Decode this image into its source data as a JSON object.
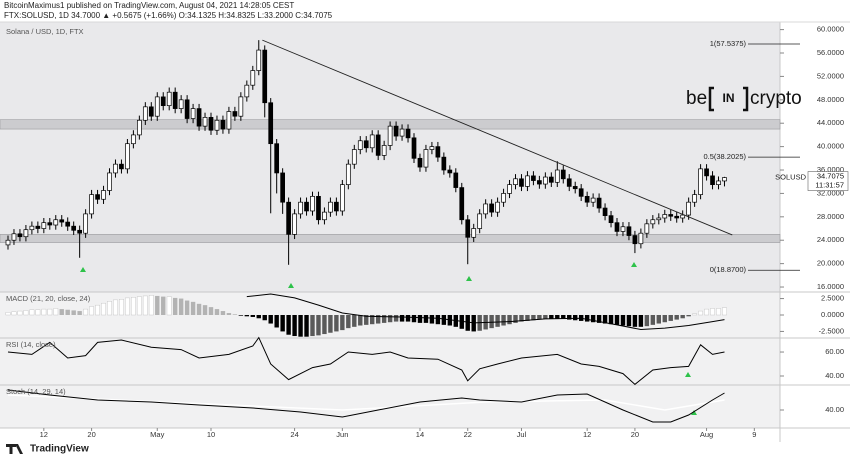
{
  "header": {
    "author_line": "BitcoinMaximus1 published on TradingView.com, August 04, 2021 14:28:05 CEST",
    "symbol_line": "FTX:SOLUSD, 1D 34.7000 ▲ +0.5675 (+1.66%) O:34.1325 H:34.8325 L:33.2000 C:34.7075"
  },
  "watermark": {
    "pre": "be",
    "mid": "IN",
    "post": "crypto"
  },
  "footer": {
    "logo": "TradingView"
  },
  "chart_data": {
    "type": "candlestick",
    "title": "Solana / USD, 1D, FTX",
    "symbol": "SOLUSD",
    "last_price": 34.7075,
    "countdown": "11:31:57",
    "open": [
      23.2,
      24.0,
      25.1,
      24.6,
      25.8,
      26.4,
      26.0,
      27.0,
      26.6,
      27.5,
      27.1,
      26.4,
      25.7,
      25.2,
      28.5,
      31.8,
      31.0,
      32.5,
      35.5,
      37.0,
      36.2,
      40.5,
      42.0,
      44.5,
      46.8,
      45.2,
      48.5,
      47.0,
      49.3,
      46.5,
      48.0,
      44.8,
      46.5,
      43.5,
      45.0,
      42.8,
      44.5,
      43.0,
      46.0,
      45.2,
      48.5,
      50.5,
      53.0,
      56.5,
      47.5,
      40.5,
      35.5,
      30.5,
      25.0,
      28.5,
      30.5,
      29.0,
      31.5,
      27.5,
      28.8,
      30.5,
      29.0,
      33.5,
      37.0,
      39.5,
      41.0,
      39.8,
      42.0,
      38.5,
      40.2,
      43.5,
      41.8,
      43.0,
      41.5,
      38.0,
      36.5,
      39.5,
      40.0,
      38.2,
      36.0,
      35.5,
      33.0,
      27.5,
      24.5,
      26.0,
      28.5,
      30.2,
      28.8,
      30.5,
      32.0,
      33.5,
      34.5,
      33.2,
      35.0,
      34.2,
      33.6,
      34.8,
      33.9,
      36.0,
      34.5,
      33.2,
      32.8,
      31.5,
      30.5,
      31.2,
      29.5,
      28.2,
      27.0,
      25.5,
      26.3,
      24.8,
      23.4,
      25.2,
      26.8,
      27.5,
      27.8,
      28.4,
      28.1,
      27.8,
      28.3,
      30.5,
      31.8,
      36.2,
      35.0,
      33.5,
      34.1325
    ],
    "high": [
      24.8,
      25.9,
      25.9,
      26.6,
      27.2,
      27.2,
      27.8,
      27.8,
      28.3,
      28.3,
      27.9,
      27.2,
      26.5,
      29.3,
      32.6,
      32.6,
      33.3,
      36.3,
      37.8,
      37.8,
      41.3,
      42.8,
      45.3,
      47.6,
      47.6,
      49.3,
      49.3,
      50.1,
      50.1,
      48.8,
      48.8,
      47.3,
      47.3,
      45.8,
      45.8,
      45.3,
      45.3,
      46.8,
      46.8,
      49.3,
      51.3,
      53.8,
      58.2,
      57.3,
      48.3,
      41.3,
      36.3,
      31.3,
      29.3,
      31.3,
      31.3,
      32.3,
      32.3,
      29.6,
      31.3,
      31.3,
      34.3,
      37.8,
      40.3,
      41.8,
      41.8,
      42.8,
      42.8,
      41.0,
      44.3,
      44.3,
      43.8,
      43.8,
      42.3,
      38.8,
      40.3,
      40.8,
      40.8,
      39.0,
      36.8,
      36.3,
      33.8,
      28.3,
      26.8,
      29.3,
      31.0,
      31.0,
      31.3,
      32.8,
      34.3,
      35.3,
      35.3,
      35.8,
      35.8,
      35.0,
      35.6,
      35.6,
      37.5,
      36.8,
      35.3,
      34.0,
      33.6,
      32.3,
      32.0,
      32.0,
      30.3,
      29.0,
      27.8,
      27.1,
      27.1,
      25.6,
      26.0,
      27.6,
      28.3,
      28.6,
      29.2,
      29.2,
      28.9,
      29.1,
      31.3,
      32.6,
      37.0,
      37.0,
      35.8,
      34.9,
      34.8325
    ],
    "low": [
      22.4,
      23.2,
      23.8,
      23.8,
      25.0,
      25.2,
      25.2,
      25.8,
      25.8,
      26.3,
      25.6,
      24.9,
      21.0,
      24.4,
      27.7,
      30.2,
      30.2,
      31.7,
      34.7,
      35.4,
      35.4,
      39.7,
      41.2,
      43.7,
      44.4,
      44.4,
      46.2,
      46.2,
      45.7,
      45.7,
      44.0,
      44.0,
      42.7,
      42.7,
      42.0,
      42.0,
      42.2,
      42.2,
      44.4,
      44.4,
      47.7,
      49.7,
      52.2,
      45.0,
      28.6,
      32.0,
      28.5,
      19.8,
      24.2,
      27.7,
      28.2,
      28.2,
      26.7,
      26.7,
      28.0,
      28.2,
      28.2,
      32.7,
      36.2,
      38.7,
      39.0,
      39.0,
      37.7,
      37.7,
      39.4,
      41.0,
      41.0,
      40.7,
      37.2,
      35.7,
      35.7,
      38.7,
      37.4,
      35.2,
      34.7,
      32.2,
      26.7,
      19.9,
      23.7,
      25.2,
      27.7,
      28.0,
      28.0,
      29.7,
      31.2,
      32.7,
      32.4,
      32.4,
      33.4,
      32.8,
      32.8,
      33.1,
      33.1,
      33.7,
      32.4,
      32.0,
      30.7,
      29.7,
      29.7,
      28.7,
      27.4,
      26.2,
      24.7,
      24.7,
      24.0,
      21.8,
      22.6,
      24.4,
      26.0,
      26.7,
      27.0,
      27.3,
      27.0,
      27.0,
      27.5,
      29.7,
      31.0,
      34.2,
      32.7,
      32.7,
      33.2
    ],
    "close": [
      24.0,
      25.1,
      24.6,
      25.8,
      26.4,
      26.0,
      27.0,
      26.6,
      27.5,
      27.1,
      26.4,
      25.7,
      25.2,
      28.5,
      31.8,
      31.0,
      32.5,
      35.5,
      37.0,
      36.2,
      40.5,
      42.0,
      44.5,
      46.8,
      45.2,
      48.5,
      47.0,
      49.3,
      46.5,
      48.0,
      44.8,
      46.5,
      43.5,
      45.0,
      42.8,
      44.5,
      43.0,
      46.0,
      45.2,
      48.5,
      50.5,
      53.0,
      56.5,
      47.5,
      40.5,
      35.5,
      30.5,
      25.0,
      28.5,
      30.5,
      29.0,
      31.5,
      27.5,
      28.8,
      30.5,
      29.0,
      33.5,
      37.0,
      39.5,
      41.0,
      39.8,
      42.0,
      38.5,
      40.2,
      43.5,
      41.8,
      43.0,
      41.5,
      38.0,
      36.5,
      39.5,
      40.0,
      38.2,
      36.0,
      35.5,
      33.0,
      27.5,
      24.5,
      26.0,
      28.5,
      30.2,
      28.8,
      30.5,
      32.0,
      33.5,
      34.5,
      33.2,
      35.0,
      34.2,
      33.6,
      34.8,
      33.9,
      36.0,
      34.5,
      33.2,
      32.8,
      31.5,
      30.5,
      31.2,
      29.5,
      28.2,
      27.0,
      25.5,
      26.3,
      24.8,
      23.4,
      25.2,
      26.8,
      27.5,
      27.8,
      28.4,
      28.1,
      27.8,
      28.3,
      30.5,
      31.8,
      36.2,
      35.0,
      33.5,
      34.13,
      34.7075
    ],
    "xlim": [
      -1.34,
      129.3
    ],
    "xticks": [
      {
        "value": 6,
        "label": "12"
      },
      {
        "value": 14,
        "label": "20"
      },
      {
        "value": 25,
        "label": "May"
      },
      {
        "value": 34,
        "label": "10"
      },
      {
        "value": 48,
        "label": "24"
      },
      {
        "value": 56,
        "label": "Jun"
      },
      {
        "value": 69,
        "label": "14"
      },
      {
        "value": 77,
        "label": "22"
      },
      {
        "value": 86,
        "label": "Jul"
      },
      {
        "value": 97,
        "label": "12"
      },
      {
        "value": 105,
        "label": "20"
      },
      {
        "value": 117,
        "label": "Aug"
      },
      {
        "value": 125,
        "label": "9"
      }
    ],
    "ylim": [
      15.15,
      61.3
    ],
    "yticks": [
      {
        "value": 16,
        "label": "16.0000"
      },
      {
        "value": 20,
        "label": "20.0000"
      },
      {
        "value": 24,
        "label": "24.0000"
      },
      {
        "value": 28,
        "label": "28.0000"
      },
      {
        "value": 32,
        "label": "32.0000"
      },
      {
        "value": 36,
        "label": "36.0000"
      },
      {
        "value": 40,
        "label": "40.0000"
      },
      {
        "value": 44,
        "label": "44.0000"
      },
      {
        "value": 48,
        "label": "48.0000"
      },
      {
        "value": 52,
        "label": "52.0000"
      },
      {
        "value": 56,
        "label": "56.0000"
      },
      {
        "value": 60,
        "label": "60.0000"
      }
    ],
    "zones": [
      [
        23.6,
        25.0
      ],
      [
        43.0,
        44.6
      ]
    ],
    "trendline": {
      "x": [
        42.6,
        121.3
      ],
      "values": [
        58.2,
        24.9
      ]
    },
    "fib_levels": [
      {
        "value": 57.5375,
        "label": "1(57.5375)"
      },
      {
        "value": 38.2025,
        "label": "0.5(38.2025)"
      },
      {
        "value": 18.87,
        "label": "0(18.8700)"
      }
    ],
    "indicators": [
      {
        "type": "macd",
        "title": "MACD (21, 20, close, 24)",
        "ylim": [
          -3.5,
          3.5
        ],
        "yticks": [
          {
            "value": 2.5,
            "label": "2.5000"
          },
          {
            "value": 0,
            "label": "0.0000"
          },
          {
            "value": -2.5,
            "label": "-2.5000"
          }
        ],
        "histogram": [
          0.4,
          0.5,
          0.6,
          0.7,
          0.8,
          0.8,
          0.9,
          0.9,
          1.0,
          0.9,
          0.8,
          0.7,
          0.6,
          0.9,
          1.3,
          1.5,
          1.8,
          2.1,
          2.3,
          2.4,
          2.6,
          2.7,
          2.8,
          2.9,
          3.0,
          2.9,
          2.8,
          2.8,
          2.6,
          2.5,
          2.2,
          2.0,
          1.7,
          1.5,
          1.2,
          0.9,
          0.6,
          0.3,
          0.1,
          -0.1,
          -0.2,
          -0.3,
          -0.5,
          -0.8,
          -1.3,
          -1.9,
          -2.5,
          -3.0,
          -3.2,
          -3.3,
          -3.3,
          -3.2,
          -3.1,
          -2.9,
          -2.7,
          -2.5,
          -2.3,
          -2.0,
          -1.8,
          -1.6,
          -1.5,
          -1.4,
          -1.3,
          -1.2,
          -1.1,
          -1.0,
          -1.0,
          -1.0,
          -1.1,
          -1.2,
          -1.2,
          -1.3,
          -1.4,
          -1.5,
          -1.6,
          -1.8,
          -2.1,
          -2.4,
          -2.5,
          -2.4,
          -2.2,
          -2.0,
          -1.8,
          -1.6,
          -1.4,
          -1.2,
          -1.0,
          -0.9,
          -0.8,
          -0.7,
          -0.6,
          -0.6,
          -0.6,
          -0.6,
          -0.7,
          -0.8,
          -0.9,
          -1.0,
          -1.1,
          -1.2,
          -1.3,
          -1.4,
          -1.5,
          -1.6,
          -1.7,
          -1.8,
          -1.8,
          -1.7,
          -1.5,
          -1.3,
          -1.1,
          -0.9,
          -0.7,
          -0.5,
          -0.2,
          0.2,
          0.6,
          0.9,
          1.0,
          1.0,
          1.1
        ],
        "lines": [
          {
            "color": "#000000",
            "x": [
              40,
              44,
              48,
              52,
              56,
              60,
              66,
              72,
              78,
              84,
              90,
              96,
              102,
              106,
              110,
              114,
              118,
              120
            ],
            "values": [
              2.8,
              3.2,
              2.6,
              1.5,
              0.3,
              -0.2,
              -0.3,
              -0.5,
              -1.2,
              -1.0,
              -0.6,
              -0.5,
              -1.5,
              -2.2,
              -2.0,
              -1.6,
              -1.0,
              -0.7
            ]
          }
        ]
      },
      {
        "type": "line",
        "title": "RSI (14, close)",
        "ylim": [
          32.5,
          71.7
        ],
        "yticks": [
          {
            "value": 60,
            "label": "60.00"
          },
          {
            "value": 40,
            "label": "40.00"
          }
        ],
        "lines": [
          {
            "color": "#000000",
            "x": [
              0,
              4,
              7,
              10,
              13,
              15,
              19,
              24,
              29,
              32,
              37,
              41,
              42,
              44,
              47,
              51,
              54,
              57,
              61,
              64,
              67,
              72,
              76,
              77,
              79,
              82,
              86,
              92,
              96,
              99,
              103,
              105,
              108,
              111,
              114,
              116,
              118,
              120
            ],
            "values": [
              60,
              58,
              68,
              55,
              57,
              68,
              70,
              64,
              62,
              55,
              58,
              65,
              72,
              50,
              37,
              47,
              50,
              60,
              58,
              60,
              55,
              54,
              45,
              36,
              46,
              50,
              55,
              58,
              50,
              48,
              42,
              33,
              45,
              47,
              48,
              66,
              58,
              60
            ]
          }
        ]
      },
      {
        "type": "line",
        "title": "Stoch (14, 29, 14)",
        "ylim": [
          4,
          90
        ],
        "yticks": [
          {
            "value": 40,
            "label": "40.00"
          }
        ],
        "lines": [
          {
            "color": "#ffffff",
            "x": [
              0,
              30,
              56,
              80,
              100,
              110,
              120
            ],
            "values": [
              70,
              54,
              40,
              56,
              60,
              40,
              60
            ]
          },
          {
            "color": "#000000",
            "x": [
              0,
              7,
              15,
              24,
              32,
              41,
              49,
              56,
              62,
              69,
              76,
              79,
              86,
              92,
              97,
              103,
              108,
              111,
              114,
              118,
              120
            ],
            "values": [
              80,
              70,
              60,
              56,
              50,
              44,
              36,
              26,
              40,
              56,
              64,
              60,
              56,
              70,
              72,
              40,
              16,
              16,
              30,
              60,
              74
            ]
          }
        ]
      }
    ]
  }
}
